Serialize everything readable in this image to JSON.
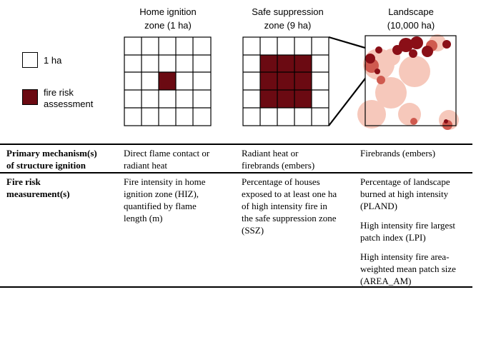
{
  "columns": [
    {
      "title_line1": "Home ignition",
      "title_line2": "zone (1 ha)"
    },
    {
      "title_line1": "Safe suppression",
      "title_line2": "zone (9 ha)"
    },
    {
      "title_line1": "Landscape",
      "title_line2": "(10,000 ha)"
    }
  ],
  "legend": {
    "unit_label": "1 ha",
    "risk_label_line1": "fire risk",
    "risk_label_line2": "assessment",
    "risk_color": "#6b0a12"
  },
  "table": {
    "rows": [
      {
        "header_line1": "Primary mechanism(s)",
        "header_line2": "of structure ignition",
        "hiz": "Direct flame contact or radiant heat",
        "ssz": "Radiant heat or firebrands (embers)",
        "landscape": [
          "Firebrands (embers)"
        ]
      },
      {
        "header_line1": "Fire risk",
        "header_line2": "measurement(s)",
        "hiz": "Fire intensity in home ignition zone (HIZ), quantified by flame length (m)",
        "ssz": "Percentage of houses exposed to at least one ha of high intensity fire in the safe suppression zone (SSZ)",
        "landscape": [
          "Percentage of landscape burned at high intensity (PLAND)",
          "High intensity fire largest patch index (LPI)",
          "High intensity fire area-weighted mean patch size (AREA_AM)"
        ]
      }
    ]
  },
  "map_colors": {
    "dark": "#8a0f17",
    "mid": "#cf5a4f",
    "light": "#f6c8bb"
  }
}
